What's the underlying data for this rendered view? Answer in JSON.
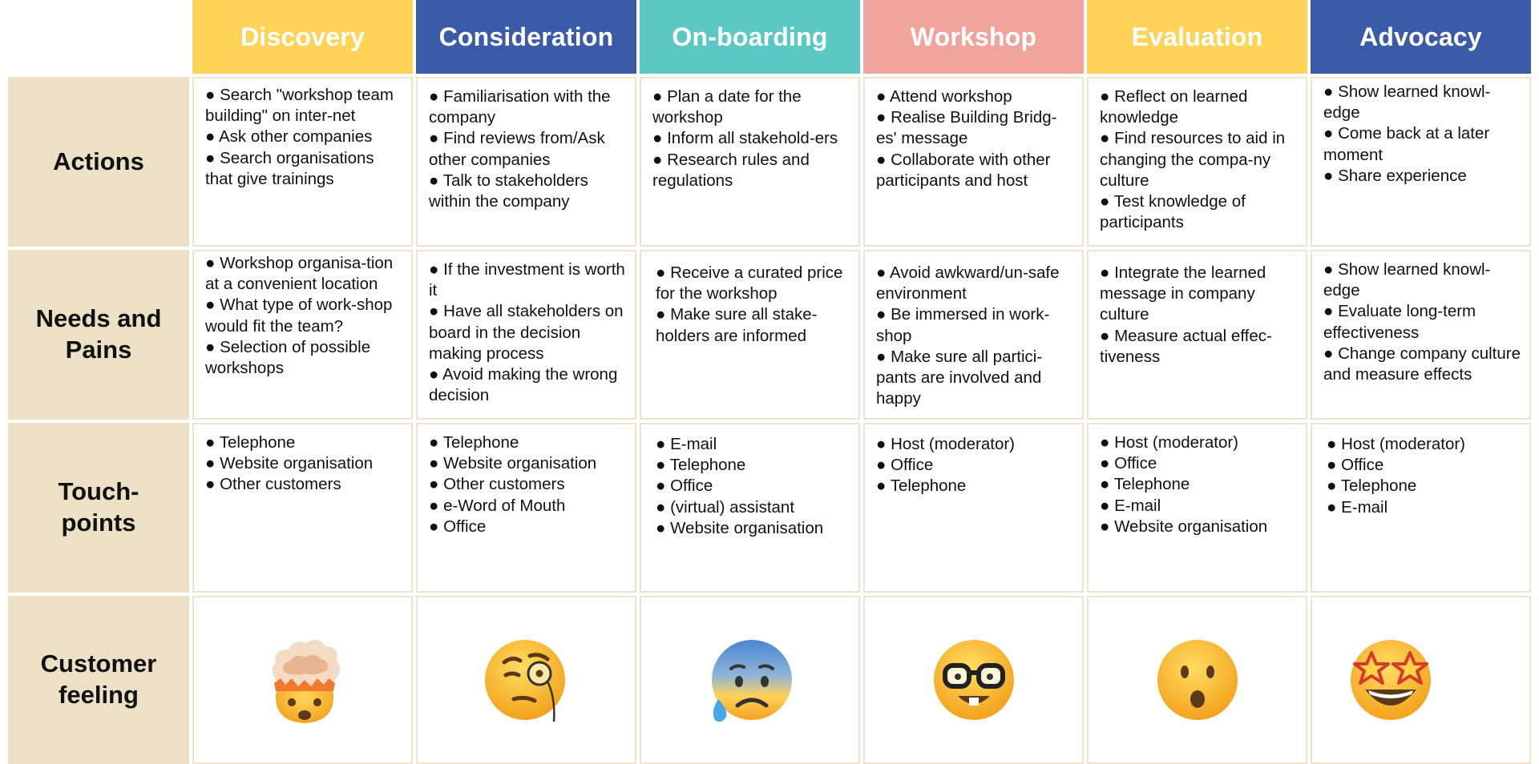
{
  "colors": {
    "yellow": "#fdd358",
    "blue": "#3b5ba8",
    "teal": "#5cc8c3",
    "pink": "#efa59c",
    "row_header_bg": "#ece1c6",
    "cell_border": "#eee4cc"
  },
  "stages": [
    {
      "label": "Discovery",
      "color": "#fdd358"
    },
    {
      "label": "Consideration",
      "color": "#3b5ba8"
    },
    {
      "label": "On-boarding",
      "color": "#5cc8c3"
    },
    {
      "label": "Workshop",
      "color": "#efa59c"
    },
    {
      "label": "Evaluation",
      "color": "#fdd358"
    },
    {
      "label": "Advocacy",
      "color": "#3b5ba8"
    }
  ],
  "rows": {
    "actions": {
      "label": "Actions",
      "cells": [
        [
          "● Search \"workshop team building\" on inter-net",
          "● Ask other companies",
          "● Search organisations that give trainings"
        ],
        [
          "● Familiarisation with the company",
          "● Find reviews from/Ask other companies",
          "● Talk to stakeholders within the company"
        ],
        [
          "● Plan a date for the workshop",
          "● Inform all stakehold-ers",
          "● Research rules and regulations"
        ],
        [
          "● Attend workshop",
          "● Realise Building Bridg-es' message",
          "● Collaborate with other participants and host"
        ],
        [
          "● Reflect on learned knowledge",
          "● Find resources to aid in changing the compa-ny culture",
          "● Test knowledge of participants"
        ],
        [
          "● Show learned knowl-edge",
          "● Come back at a later moment",
          "● Share experience"
        ]
      ]
    },
    "needs": {
      "label_line1": "Needs and",
      "label_line2": "Pains",
      "cells": [
        [
          "● Workshop organisa-tion at a convenient location",
          "● What type of work-shop would fit the team?",
          "● Selection of possible workshops"
        ],
        [
          "● If the investment is worth it",
          "● Have all stakeholders on board in the decision making process",
          "● Avoid making the wrong decision"
        ],
        [
          "● Receive a curated price for the workshop",
          "● Make sure all stake-holders are informed"
        ],
        [
          "● Avoid awkward/un-safe environment",
          "● Be immersed in work-shop",
          "● Make sure all partici-pants are involved and happy"
        ],
        [
          "● Integrate the learned message in company culture",
          "● Measure actual effec-tiveness"
        ],
        [
          "● Show learned knowl-edge",
          "● Evaluate long-term effectiveness",
          "● Change company culture and measure effects"
        ]
      ]
    },
    "touchpoints": {
      "label_line1": "Touch-",
      "label_line2": "points",
      "cells": [
        [
          "● Telephone",
          "● Website organisation",
          "● Other customers"
        ],
        [
          "● Telephone",
          "● Website organisation",
          "● Other customers",
          "● e-Word of Mouth",
          "● Office"
        ],
        [
          "● E-mail",
          "● Telephone",
          "● Office",
          "● (virtual) assistant",
          "● Website organisation"
        ],
        [
          "● Host (moderator)",
          "● Office",
          "● Telephone"
        ],
        [
          "● Host (moderator)",
          "● Office",
          "● Telephone",
          "● E-mail",
          "● Website organisation"
        ],
        [
          "● Host (moderator)",
          "● Office",
          "● Telephone",
          "● E-mail"
        ]
      ]
    },
    "feeling": {
      "label_line1": "Customer",
      "label_line2": "feeling",
      "emojis": [
        "exploding-head-emoji",
        "monocle-face-emoji",
        "anxious-sweat-face-emoji",
        "nerd-face-emoji",
        "hushed-face-emoji",
        "star-struck-emoji"
      ]
    }
  }
}
